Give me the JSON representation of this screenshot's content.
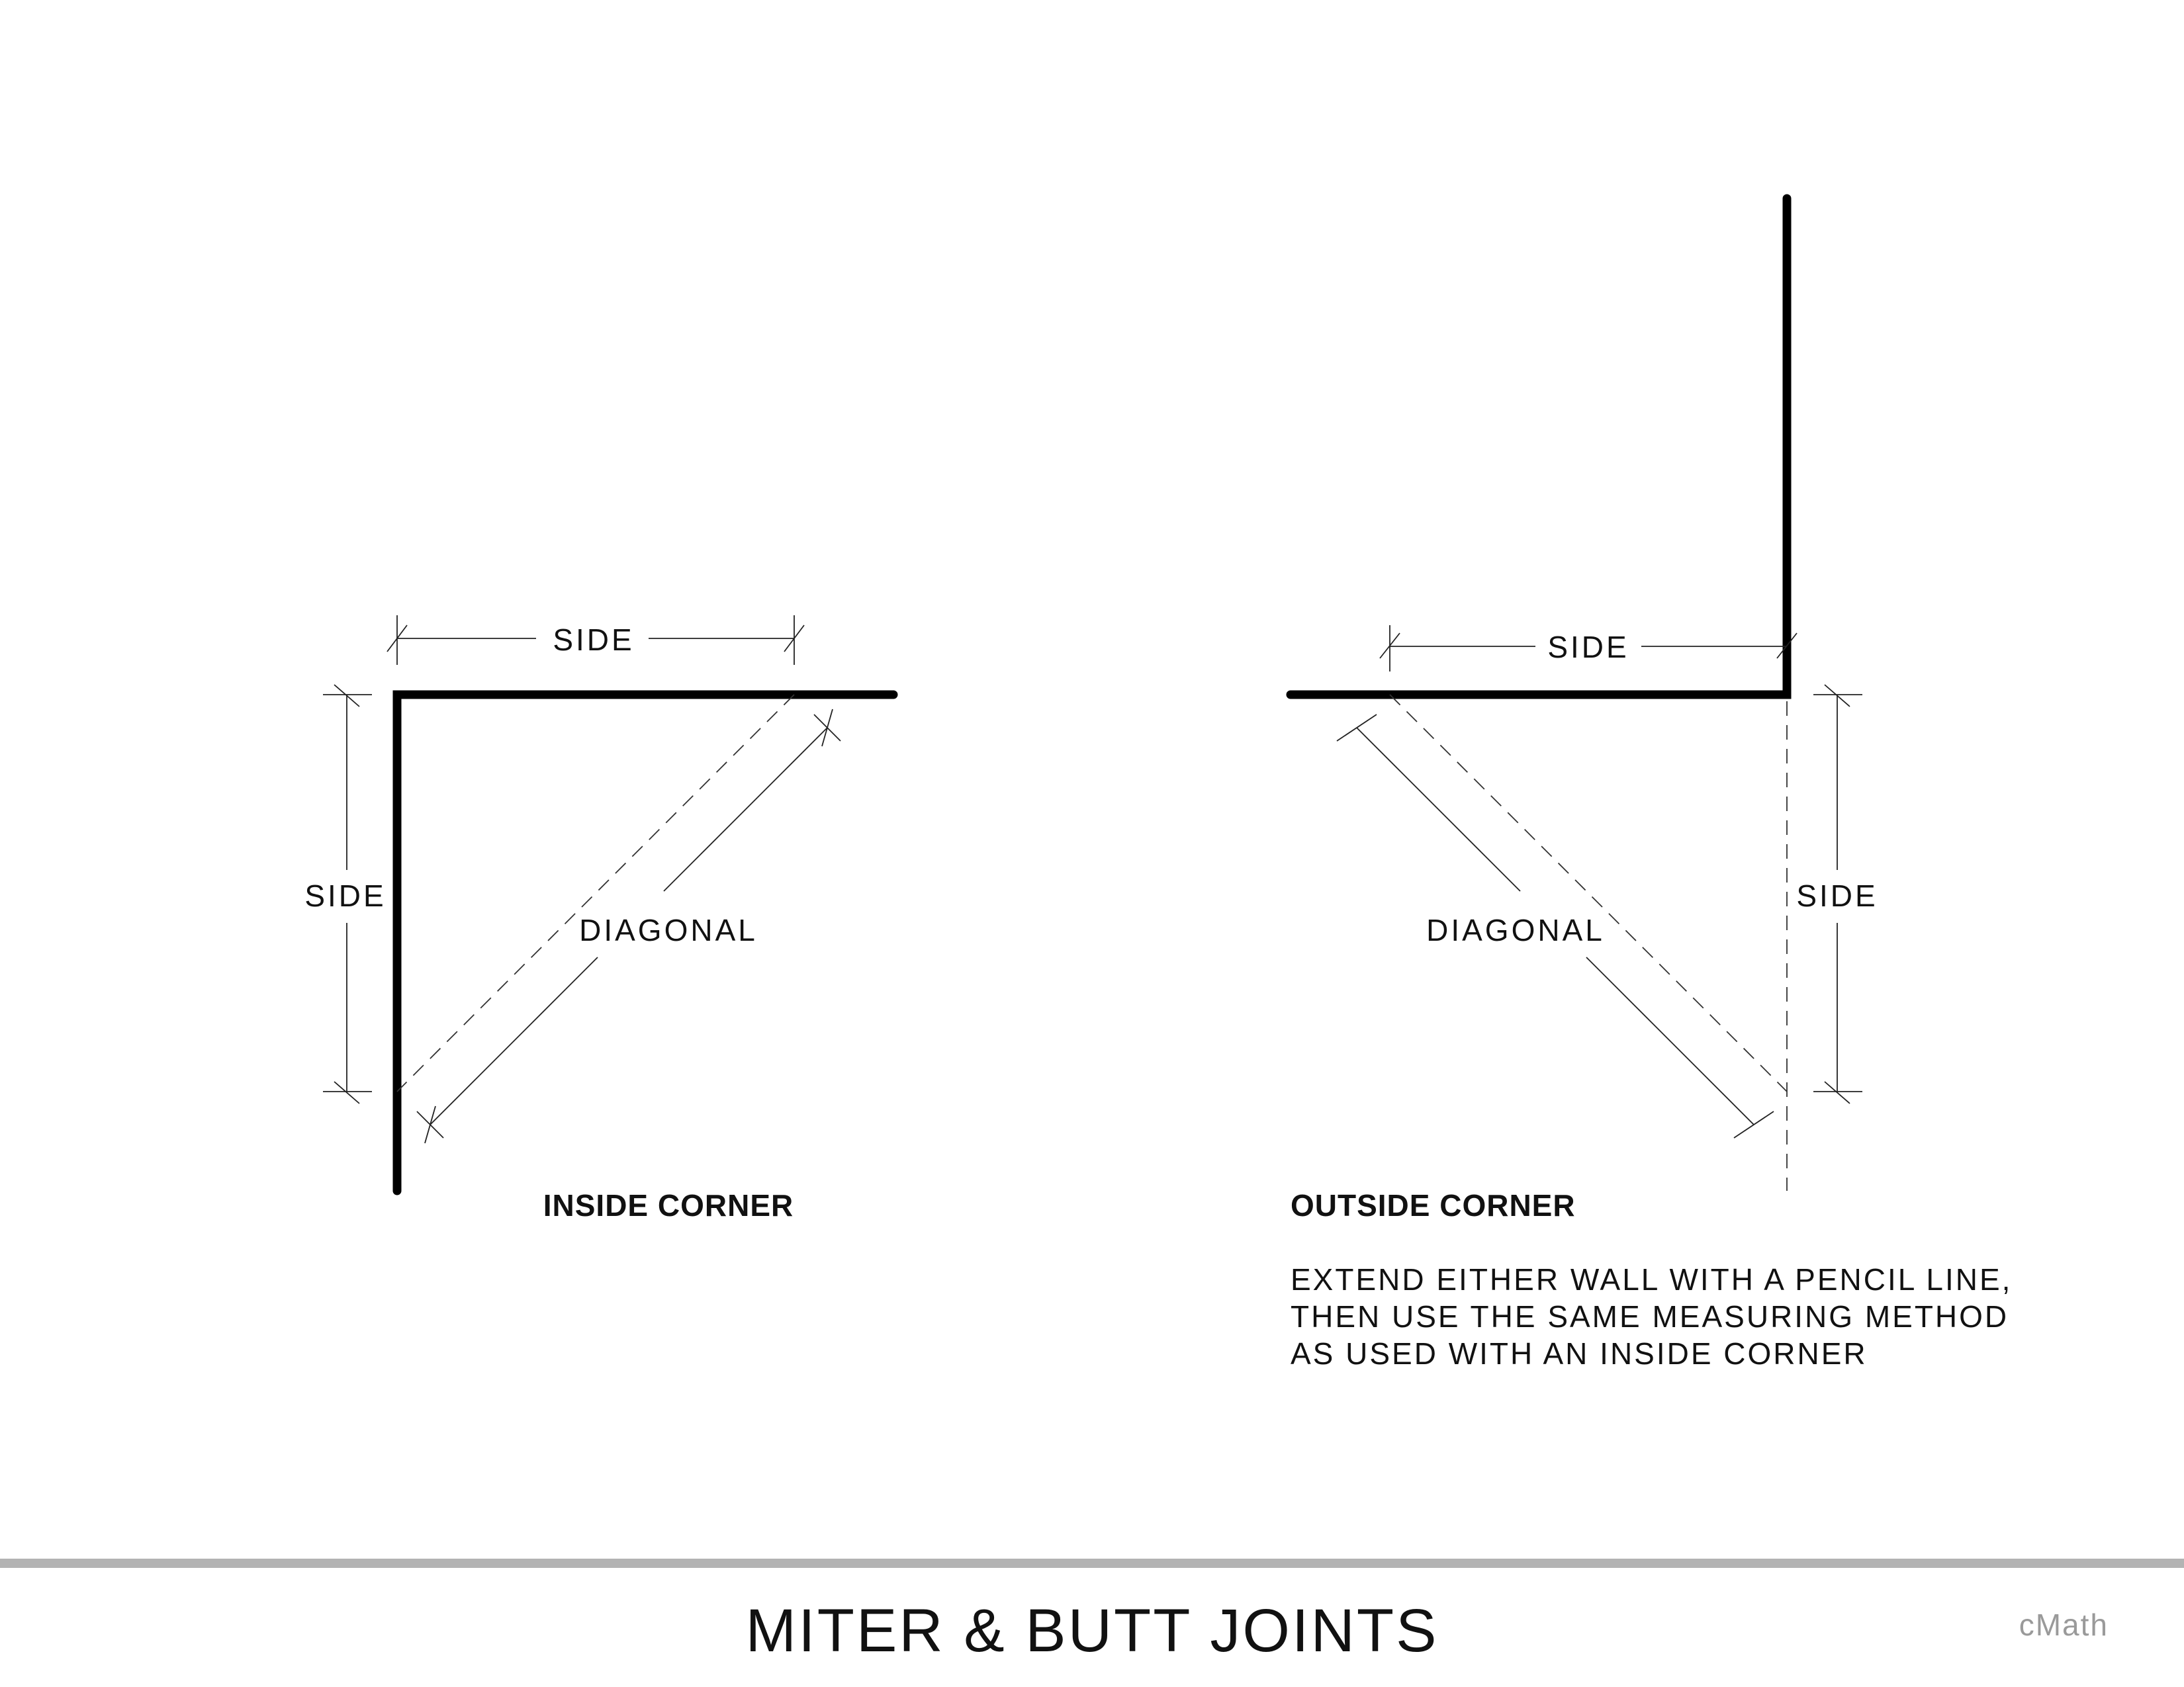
{
  "inside_corner": {
    "caption": "INSIDE CORNER",
    "side_top_label": "SIDE",
    "side_left_label": "SIDE",
    "diagonal_label": "DIAGONAL"
  },
  "outside_corner": {
    "caption": "OUTSIDE CORNER",
    "side_top_label": "SIDE",
    "side_right_label": "SIDE",
    "diagonal_label": "DIAGONAL",
    "instructions": [
      "EXTEND EITHER WALL WITH A PENCIL LINE,",
      "THEN USE THE SAME MEASURING METHOD",
      "AS USED WITH AN INSIDE CORNER"
    ]
  },
  "footer": {
    "title": "MITER & BUTT JOINTS",
    "brand": "cMath",
    "rule_color": "#b3b3b3"
  }
}
